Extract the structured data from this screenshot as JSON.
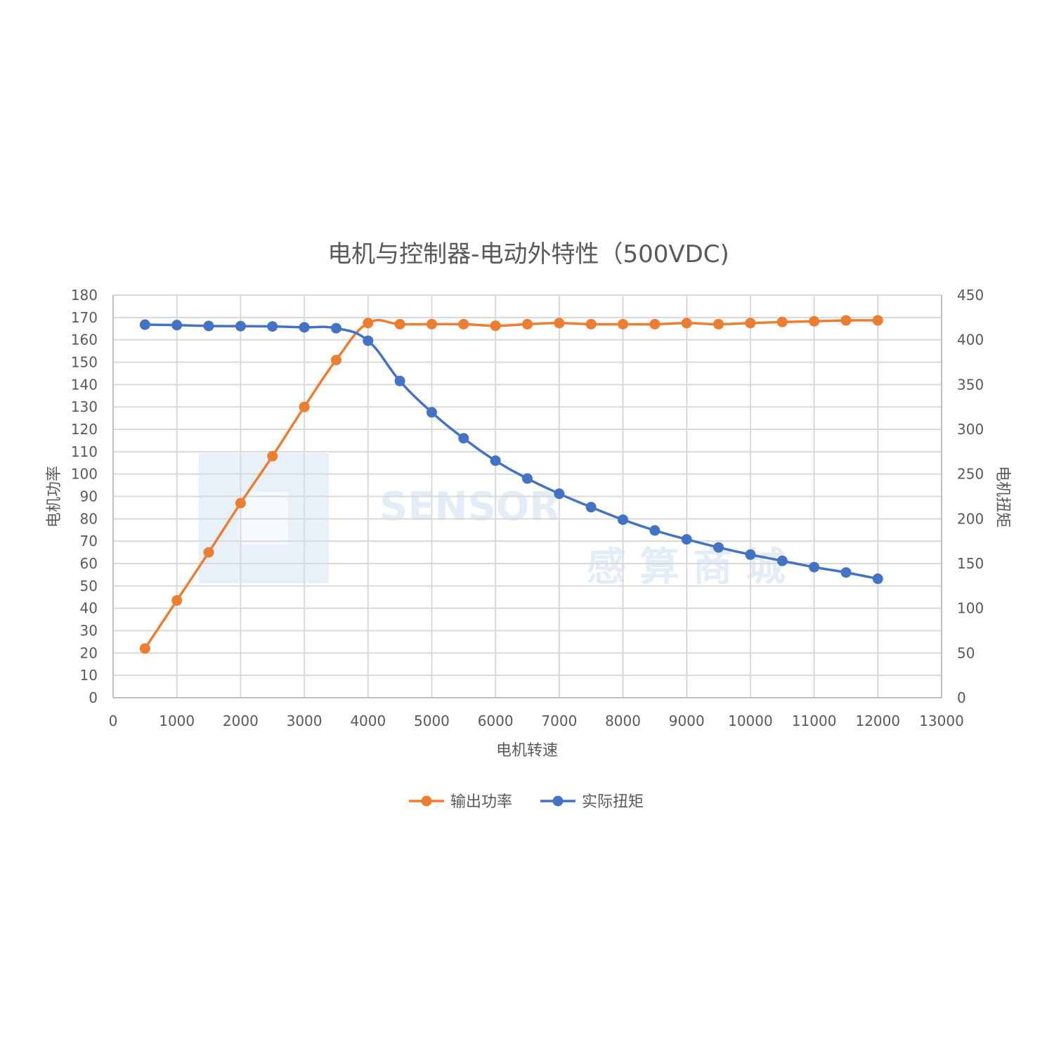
{
  "chart_data": {
    "type": "line",
    "title": "电机与控制器-电动外特性（500VDC)",
    "xlabel": "电机转速",
    "ylabel_left": "电机功率",
    "ylabel_right": "电机扭矩",
    "xlim": [
      0,
      13000
    ],
    "xticks": [
      0,
      1000,
      2000,
      3000,
      4000,
      5000,
      6000,
      7000,
      8000,
      9000,
      10000,
      11000,
      12000,
      13000
    ],
    "ylim_left": [
      0,
      180
    ],
    "yticks_left": [
      0,
      10,
      20,
      30,
      40,
      50,
      60,
      70,
      80,
      90,
      100,
      110,
      120,
      130,
      140,
      150,
      160,
      170,
      180
    ],
    "ylim_right": [
      0,
      450
    ],
    "yticks_right": [
      0,
      50,
      100,
      150,
      200,
      250,
      300,
      350,
      400,
      450
    ],
    "grid": true,
    "legend_position": "bottom",
    "x": [
      500,
      1000,
      1500,
      2000,
      2500,
      3000,
      3500,
      4000,
      4500,
      5000,
      5500,
      6000,
      6500,
      7000,
      7500,
      8000,
      8500,
      9000,
      9500,
      10000,
      10500,
      11000,
      11500,
      12000
    ],
    "series": [
      {
        "name": "输出功率",
        "axis": "left",
        "color": "#ed7d31",
        "values": [
          22,
          43.5,
          65,
          87,
          108,
          130,
          151,
          167.5,
          167,
          167,
          167,
          166.3,
          167,
          167.5,
          167,
          167,
          167,
          167.5,
          167,
          167.5,
          168,
          168.3,
          168.7,
          168.7
        ]
      },
      {
        "name": "实际扭矩",
        "axis": "right",
        "color": "#4472c4",
        "values": [
          417,
          416.5,
          415.5,
          415.3,
          415,
          414,
          413,
          399,
          354,
          319,
          290,
          265,
          245,
          228,
          213,
          199,
          187,
          177,
          168,
          160,
          153,
          146,
          140,
          133
        ]
      }
    ]
  },
  "watermark": {
    "brand": "SENSOR",
    "text": "感 算 商 城"
  }
}
